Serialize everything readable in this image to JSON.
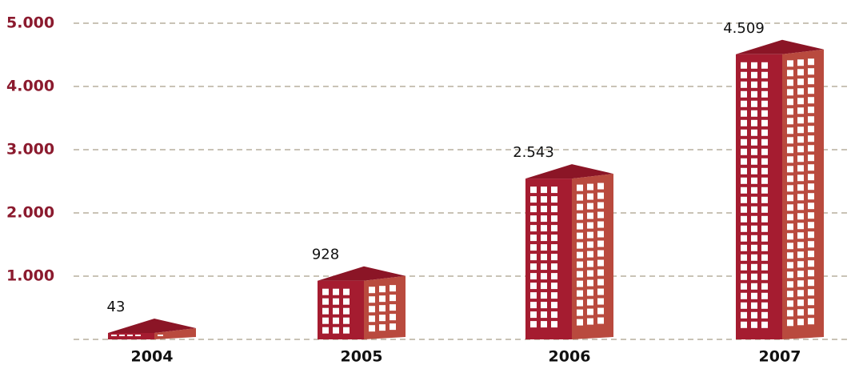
{
  "chart_data": {
    "type": "bar",
    "categories": [
      "2004",
      "2005",
      "2006",
      "2007"
    ],
    "values": [
      43,
      928,
      2543,
      4509
    ],
    "value_labels": [
      "43",
      "928",
      "2.543",
      "4.509"
    ],
    "color": "#a51c30",
    "ylim": [
      0,
      5000
    ],
    "yticks": [
      {
        "value": 1000,
        "label": "1.000"
      },
      {
        "value": 2000,
        "label": "2.000"
      },
      {
        "value": 3000,
        "label": "3.000"
      },
      {
        "value": 4000,
        "label": "4.000"
      },
      {
        "value": 5000,
        "label": "5.000"
      }
    ],
    "grid": true
  }
}
